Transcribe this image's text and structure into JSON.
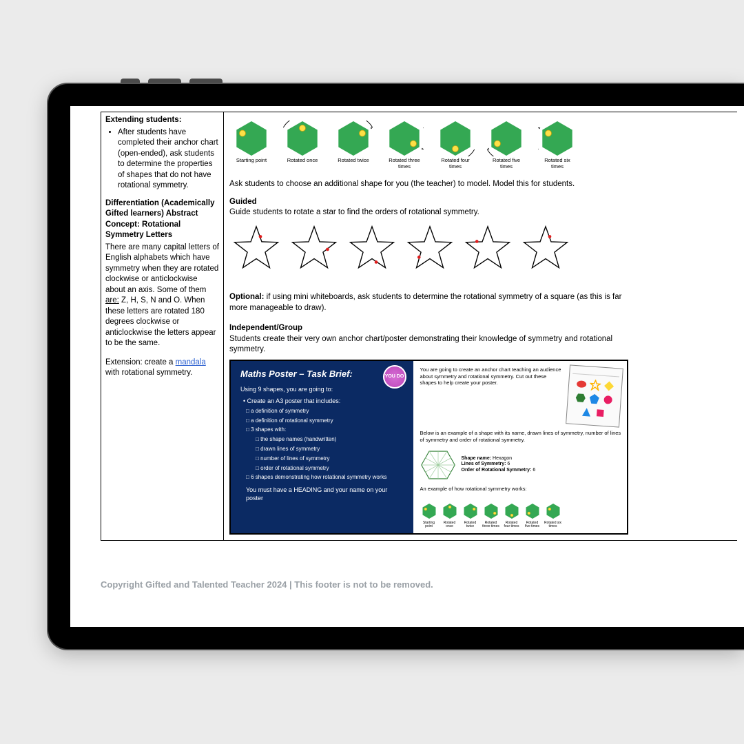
{
  "colors": {
    "page_bg": "#ebebeb",
    "tablet_bezel": "#000000",
    "screen_bg": "#ffffff",
    "text": "#000000",
    "footer_text": "#9aa0a6",
    "link": "#2a5fd0",
    "hex_fill": "#34a853",
    "hex_dot": "#fde047",
    "hex_dot_stroke": "#caa50a",
    "star_stroke": "#000000",
    "star_dot": "#e11d1d",
    "poster_bg": "#0b2a63",
    "youdo_bg": "#b83fb6",
    "ws_oval": "#e53935",
    "ws_star": "#ffb300",
    "ws_diamond": "#fdd835",
    "ws_hex": "#2e7d32",
    "ws_pent": "#1e88e5",
    "ws_circle": "#e91e63",
    "ws_tri": "#1e88e5",
    "ws_square": "#e91e63"
  },
  "left": {
    "h1": "Extending students:",
    "bullet": "After students have completed their anchor chart (open-ended), ask students to determine the properties of shapes that do not have rotational symmetry.",
    "h2": "Differentiation (Academically Gifted learners) Abstract Concept: Rotational Symmetry Letters",
    "p1a": "There are many capital letters of English alphabets which have symmetry when they are rotated clockwise or anticlockwise about an axis. Some of them ",
    "are": "are:",
    "p1b": " Z, H, S, N and O. When these letters are rotated 180 degrees clockwise or anticlockwise the letters appear to be the same.",
    "ext_a": "Extension: create a ",
    "ext_link": "mandala",
    "ext_b": " with rotational symmetry."
  },
  "right": {
    "hex_labels": [
      "Starting point",
      "Rotated once",
      "Rotated twice",
      "Rotated three times",
      "Rotated four times",
      "Rotated five times",
      "Rotated six times"
    ],
    "hex_dot_angles_deg": [
      300,
      0,
      60,
      120,
      180,
      240,
      300
    ],
    "ask": "Ask students to choose an additional shape for you (the teacher) to model. Model this for students.",
    "guided_h": "Guided",
    "guided_p": "Guide students to rotate a star to find the orders of rotational symmetry.",
    "star_dot_points": [
      0,
      1,
      2,
      3,
      4,
      0
    ],
    "optional_b": "Optional:",
    "optional_t": " if using mini whiteboards, ask students to determine the rotational symmetry of a square (as this is far more manageable to draw).",
    "ind_h": "Independent/Group",
    "ind_p": "Students create their very own anchor chart/poster demonstrating their knowledge of symmetry and rotational symmetry."
  },
  "poster": {
    "title": "Maths Poster – Task Brief:",
    "youdo": "YOU DO",
    "intro": "Using 9 shapes, you are going to:",
    "li1": "Create an A3 poster that includes:",
    "sub": [
      "a definition of symmetry",
      "a definition of rotational symmetry",
      "3 shapes with:"
    ],
    "sub2": [
      "the shape names (handwritten)",
      "drawn lines of symmetry",
      "number of lines of symmetry",
      "order of rotational symmetry"
    ],
    "sub3": "6 shapes demonstrating how rotational symmetry works",
    "must": "You must have a HEADING and your name on your poster",
    "r_intro": "You are going to create an anchor chart teaching an audience about symmetry and rotational symmetry. Cut out these shapes to help create your poster.",
    "r_mid": "Below is an example of a shape with its name, drawn lines of symmetry, number of lines of symmetry and order of rotational symmetry.",
    "shape_name_l": "Shape name:",
    "shape_name_v": " Hexagon",
    "lines_l": "Lines of Symmetry:",
    "lines_v": " 6",
    "order_l": "Order of Rotational Symmetry:",
    "order_v": " 6",
    "r_bottom": "An example of how rotational symmetry works:",
    "tiny_labels": [
      "Starting point",
      "Rotated once",
      "Rotated twice",
      "Rotated three times",
      "Rotated four times",
      "Rotated five times",
      "Rotated six times"
    ]
  },
  "footer": "Copyright Gifted and Talented Teacher 2024 | This footer is not to be removed."
}
